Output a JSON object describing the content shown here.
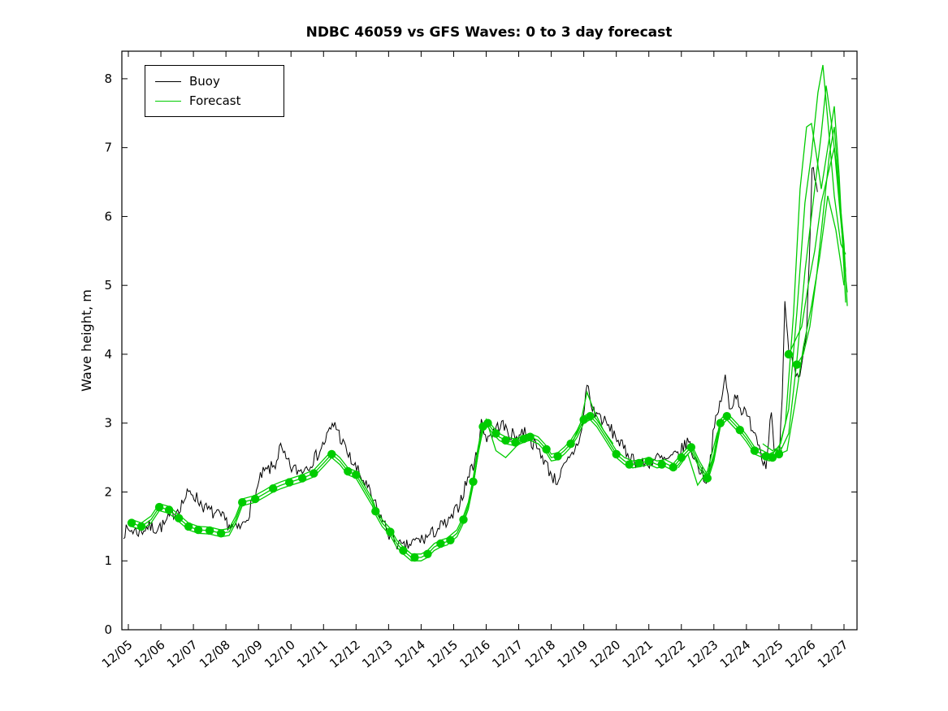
{
  "chart_data": {
    "type": "line",
    "title": "NDBC 46059 vs GFS Waves: 0 to 3 day forecast",
    "xlabel": "",
    "ylabel": "Wave height, m",
    "xlim": [
      -0.2,
      22.4
    ],
    "ylim": [
      0,
      8.4
    ],
    "grid": false,
    "legend_position": "top-left",
    "y_ticks": [
      0,
      1,
      2,
      3,
      4,
      5,
      6,
      7,
      8
    ],
    "x_ticks": [
      0,
      1,
      2,
      3,
      4,
      5,
      6,
      7,
      8,
      9,
      10,
      11,
      12,
      13,
      14,
      15,
      16,
      17,
      18,
      19,
      20,
      21,
      22
    ],
    "x_ticklabels": [
      "12/05",
      "12/06",
      "12/07",
      "12/08",
      "12/09",
      "12/10",
      "12/11",
      "12/12",
      "12/13",
      "12/14",
      "12/15",
      "12/16",
      "12/17",
      "12/18",
      "12/19",
      "12/20",
      "12/21",
      "12/22",
      "12/23",
      "12/24",
      "12/25",
      "12/26",
      "12/27"
    ],
    "colors": {
      "buoy": "#000000",
      "forecast": "#00cc00"
    },
    "legend": [
      {
        "label": "Buoy",
        "color": "#000000"
      },
      {
        "label": "Forecast",
        "color": "#00cc00"
      }
    ],
    "buoy": {
      "units": "days since 12/05, wave height m",
      "noise_amplitude": 0.1,
      "sample_hours": 1,
      "anchors": [
        [
          -0.15,
          1.42
        ],
        [
          0.1,
          1.45
        ],
        [
          0.35,
          1.42
        ],
        [
          0.6,
          1.5
        ],
        [
          0.85,
          1.47
        ],
        [
          1.1,
          1.52
        ],
        [
          1.35,
          1.68
        ],
        [
          1.6,
          1.8
        ],
        [
          1.8,
          1.95
        ],
        [
          1.95,
          2.0
        ],
        [
          2.15,
          1.88
        ],
        [
          2.4,
          1.75
        ],
        [
          2.65,
          1.68
        ],
        [
          2.9,
          1.62
        ],
        [
          3.1,
          1.52
        ],
        [
          3.3,
          1.45
        ],
        [
          3.5,
          1.5
        ],
        [
          3.7,
          1.7
        ],
        [
          3.9,
          1.95
        ],
        [
          4.1,
          2.25
        ],
        [
          4.3,
          2.32
        ],
        [
          4.5,
          2.38
        ],
        [
          4.67,
          2.65
        ],
        [
          4.8,
          2.5
        ],
        [
          5.0,
          2.35
        ],
        [
          5.25,
          2.3
        ],
        [
          5.5,
          2.38
        ],
        [
          5.75,
          2.5
        ],
        [
          5.95,
          2.65
        ],
        [
          6.15,
          2.85
        ],
        [
          6.35,
          3.0
        ],
        [
          6.55,
          2.75
        ],
        [
          6.8,
          2.5
        ],
        [
          7.05,
          2.3
        ],
        [
          7.3,
          2.1
        ],
        [
          7.55,
          1.85
        ],
        [
          7.8,
          1.6
        ],
        [
          8.0,
          1.4
        ],
        [
          8.2,
          1.28
        ],
        [
          8.45,
          1.18
        ],
        [
          8.7,
          1.25
        ],
        [
          8.9,
          1.3
        ],
        [
          9.1,
          1.32
        ],
        [
          9.35,
          1.4
        ],
        [
          9.6,
          1.5
        ],
        [
          9.85,
          1.55
        ],
        [
          10.1,
          1.75
        ],
        [
          10.3,
          2.0
        ],
        [
          10.5,
          2.3
        ],
        [
          10.7,
          2.5
        ],
        [
          10.85,
          3.0
        ],
        [
          11.0,
          2.8
        ],
        [
          11.2,
          2.85
        ],
        [
          11.45,
          3.0
        ],
        [
          11.7,
          2.85
        ],
        [
          11.95,
          2.8
        ],
        [
          12.2,
          2.9
        ],
        [
          12.45,
          2.7
        ],
        [
          12.7,
          2.55
        ],
        [
          12.95,
          2.3
        ],
        [
          13.15,
          2.15
        ],
        [
          13.4,
          2.35
        ],
        [
          13.6,
          2.5
        ],
        [
          13.8,
          2.7
        ],
        [
          13.95,
          2.9
        ],
        [
          14.1,
          3.6
        ],
        [
          14.25,
          3.2
        ],
        [
          14.5,
          3.1
        ],
        [
          14.75,
          2.95
        ],
        [
          15.0,
          2.8
        ],
        [
          15.25,
          2.6
        ],
        [
          15.5,
          2.5
        ],
        [
          15.75,
          2.4
        ],
        [
          16.0,
          2.42
        ],
        [
          16.25,
          2.5
        ],
        [
          16.5,
          2.45
        ],
        [
          16.75,
          2.5
        ],
        [
          17.0,
          2.6
        ],
        [
          17.2,
          2.75
        ],
        [
          17.4,
          2.5
        ],
        [
          17.6,
          2.3
        ],
        [
          17.8,
          2.15
        ],
        [
          18.0,
          2.9
        ],
        [
          18.2,
          3.3
        ],
        [
          18.35,
          3.65
        ],
        [
          18.5,
          3.15
        ],
        [
          18.65,
          3.45
        ],
        [
          18.85,
          3.2
        ],
        [
          19.0,
          3.1
        ],
        [
          19.25,
          2.9
        ],
        [
          19.45,
          2.6
        ],
        [
          19.6,
          2.35
        ],
        [
          19.75,
          3.2
        ],
        [
          19.85,
          2.6
        ],
        [
          20.0,
          2.45
        ],
        [
          20.1,
          3.3
        ],
        [
          20.18,
          4.7
        ],
        [
          20.3,
          4.05
        ],
        [
          20.45,
          3.85
        ],
        [
          20.6,
          3.65
        ],
        [
          20.75,
          3.95
        ],
        [
          20.85,
          4.4
        ],
        [
          20.95,
          5.6
        ],
        [
          21.02,
          6.85
        ],
        [
          21.1,
          6.6
        ],
        [
          21.2,
          6.25
        ]
      ]
    },
    "forecast": {
      "offsets": [
        0,
        0.05,
        -0.05
      ],
      "master": [
        [
          0.1,
          1.55
        ],
        [
          0.4,
          1.5
        ],
        [
          0.7,
          1.6
        ],
        [
          0.95,
          1.78
        ],
        [
          1.25,
          1.74
        ],
        [
          1.55,
          1.62
        ],
        [
          1.85,
          1.5
        ],
        [
          2.15,
          1.45
        ],
        [
          2.5,
          1.44
        ],
        [
          2.85,
          1.4
        ],
        [
          3.1,
          1.42
        ],
        [
          3.3,
          1.6
        ],
        [
          3.5,
          1.85
        ],
        [
          3.9,
          1.9
        ],
        [
          4.2,
          1.98
        ],
        [
          4.45,
          2.05
        ],
        [
          4.7,
          2.1
        ],
        [
          4.95,
          2.14
        ],
        [
          5.35,
          2.2
        ],
        [
          5.7,
          2.27
        ],
        [
          6.0,
          2.42
        ],
        [
          6.25,
          2.55
        ],
        [
          6.5,
          2.45
        ],
        [
          6.75,
          2.3
        ],
        [
          7.0,
          2.25
        ],
        [
          7.25,
          2.05
        ],
        [
          7.5,
          1.85
        ],
        [
          7.6,
          1.72
        ],
        [
          7.8,
          1.55
        ],
        [
          8.05,
          1.42
        ],
        [
          8.25,
          1.25
        ],
        [
          8.45,
          1.15
        ],
        [
          8.7,
          1.05
        ],
        [
          9.0,
          1.05
        ],
        [
          9.2,
          1.1
        ],
        [
          9.4,
          1.2
        ],
        [
          9.6,
          1.25
        ],
        [
          9.8,
          1.28
        ],
        [
          10.1,
          1.4
        ],
        [
          10.3,
          1.6
        ],
        [
          10.45,
          1.8
        ],
        [
          10.6,
          2.15
        ],
        [
          10.75,
          2.6
        ],
        [
          10.9,
          2.95
        ],
        [
          11.05,
          3.0
        ],
        [
          11.2,
          2.9
        ],
        [
          11.4,
          2.8
        ],
        [
          11.6,
          2.75
        ],
        [
          11.9,
          2.72
        ],
        [
          12.15,
          2.77
        ],
        [
          12.35,
          2.8
        ],
        [
          12.6,
          2.75
        ],
        [
          12.85,
          2.62
        ],
        [
          13.0,
          2.5
        ],
        [
          13.2,
          2.52
        ],
        [
          13.4,
          2.6
        ],
        [
          13.6,
          2.7
        ],
        [
          13.8,
          2.85
        ],
        [
          14.0,
          3.05
        ],
        [
          14.2,
          3.1
        ],
        [
          14.4,
          3.0
        ],
        [
          14.6,
          2.85
        ],
        [
          14.8,
          2.7
        ],
        [
          15.0,
          2.55
        ],
        [
          15.25,
          2.45
        ],
        [
          15.5,
          2.4
        ],
        [
          15.75,
          2.42
        ],
        [
          16.0,
          2.45
        ],
        [
          16.25,
          2.4
        ],
        [
          16.5,
          2.42
        ],
        [
          16.75,
          2.36
        ],
        [
          17.0,
          2.5
        ],
        [
          17.3,
          2.65
        ],
        [
          17.55,
          2.4
        ],
        [
          17.8,
          2.2
        ],
        [
          18.0,
          2.5
        ],
        [
          18.2,
          3.0
        ],
        [
          18.4,
          3.1
        ],
        [
          18.6,
          3.0
        ],
        [
          18.8,
          2.9
        ],
        [
          19.0,
          2.78
        ],
        [
          19.25,
          2.6
        ],
        [
          19.5,
          2.55
        ],
        [
          19.7,
          2.5
        ],
        [
          19.9,
          2.55
        ],
        [
          20.1,
          2.6
        ]
      ],
      "extra_members": [
        [
          [
            10.6,
            2.1
          ],
          [
            10.8,
            2.7
          ],
          [
            11.0,
            3.05
          ],
          [
            11.3,
            2.6
          ],
          [
            11.6,
            2.5
          ],
          [
            11.9,
            2.65
          ],
          [
            12.2,
            2.8
          ]
        ],
        [
          [
            13.6,
            2.65
          ],
          [
            13.9,
            3.0
          ],
          [
            14.1,
            3.45
          ],
          [
            14.3,
            3.2
          ],
          [
            14.6,
            2.9
          ],
          [
            14.9,
            2.7
          ]
        ],
        [
          [
            16.9,
            2.35
          ],
          [
            17.2,
            2.55
          ],
          [
            17.5,
            2.1
          ],
          [
            17.8,
            2.3
          ],
          [
            18.1,
            2.85
          ],
          [
            18.3,
            3.05
          ]
        ]
      ],
      "end_members": [
        [
          [
            19.5,
            2.7
          ],
          [
            19.8,
            2.6
          ],
          [
            20.0,
            2.65
          ],
          [
            20.2,
            3.0
          ],
          [
            20.45,
            4.6
          ],
          [
            20.65,
            6.4
          ],
          [
            20.85,
            7.3
          ],
          [
            21.0,
            7.35
          ],
          [
            21.15,
            6.9
          ],
          [
            21.3,
            6.4
          ],
          [
            21.5,
            7.0
          ],
          [
            21.7,
            7.6
          ],
          [
            21.85,
            6.6
          ],
          [
            22.05,
            4.75
          ]
        ],
        [
          [
            19.8,
            2.55
          ],
          [
            20.05,
            2.7
          ],
          [
            20.3,
            3.2
          ],
          [
            20.55,
            4.6
          ],
          [
            20.8,
            6.2
          ],
          [
            21.0,
            6.9
          ],
          [
            21.2,
            7.8
          ],
          [
            21.35,
            8.2
          ],
          [
            21.5,
            7.4
          ],
          [
            21.7,
            6.3
          ],
          [
            21.9,
            5.6
          ],
          [
            22.05,
            5.45
          ]
        ],
        [
          [
            20.05,
            2.6
          ],
          [
            20.3,
            2.85
          ],
          [
            20.55,
            3.9
          ],
          [
            20.8,
            5.2
          ],
          [
            21.05,
            6.2
          ],
          [
            21.3,
            7.2
          ],
          [
            21.45,
            7.9
          ],
          [
            21.6,
            7.4
          ],
          [
            21.8,
            6.6
          ],
          [
            22.0,
            5.6
          ],
          [
            22.1,
            4.7
          ]
        ],
        [
          [
            20.3,
            4.0
          ],
          [
            20.5,
            4.2
          ],
          [
            20.7,
            4.4
          ],
          [
            20.9,
            5.0
          ],
          [
            21.1,
            5.5
          ],
          [
            21.3,
            6.2
          ],
          [
            21.5,
            6.6
          ],
          [
            21.7,
            7.0
          ],
          [
            21.85,
            6.2
          ],
          [
            22.05,
            5.2
          ]
        ],
        [
          [
            20.55,
            3.85
          ],
          [
            20.75,
            4.0
          ],
          [
            20.95,
            4.4
          ],
          [
            21.15,
            5.1
          ],
          [
            21.35,
            6.0
          ],
          [
            21.55,
            6.9
          ],
          [
            21.7,
            7.3
          ],
          [
            21.85,
            6.4
          ],
          [
            22.0,
            5.3
          ],
          [
            22.1,
            4.9
          ]
        ],
        [
          [
            20.0,
            2.55
          ],
          [
            20.25,
            2.6
          ],
          [
            20.5,
            3.3
          ],
          [
            20.75,
            4.1
          ],
          [
            21.0,
            4.7
          ],
          [
            21.25,
            5.4
          ],
          [
            21.5,
            6.3
          ],
          [
            21.75,
            5.8
          ],
          [
            22.0,
            5.0
          ]
        ]
      ],
      "markers": [
        [
          0.1,
          1.55
        ],
        [
          0.4,
          1.5
        ],
        [
          0.95,
          1.78
        ],
        [
          1.25,
          1.74
        ],
        [
          1.55,
          1.62
        ],
        [
          1.85,
          1.5
        ],
        [
          2.15,
          1.45
        ],
        [
          2.5,
          1.44
        ],
        [
          2.85,
          1.4
        ],
        [
          3.5,
          1.85
        ],
        [
          3.9,
          1.9
        ],
        [
          4.45,
          2.05
        ],
        [
          4.95,
          2.14
        ],
        [
          5.35,
          2.2
        ],
        [
          5.7,
          2.27
        ],
        [
          6.25,
          2.55
        ],
        [
          6.75,
          2.3
        ],
        [
          7.0,
          2.25
        ],
        [
          7.6,
          1.72
        ],
        [
          8.05,
          1.42
        ],
        [
          8.45,
          1.15
        ],
        [
          8.8,
          1.05
        ],
        [
          9.2,
          1.1
        ],
        [
          9.6,
          1.25
        ],
        [
          9.9,
          1.3
        ],
        [
          10.3,
          1.6
        ],
        [
          10.6,
          2.15
        ],
        [
          10.9,
          2.95
        ],
        [
          11.05,
          3.0
        ],
        [
          11.3,
          2.85
        ],
        [
          11.6,
          2.75
        ],
        [
          11.9,
          2.72
        ],
        [
          12.15,
          2.77
        ],
        [
          12.35,
          2.8
        ],
        [
          12.85,
          2.62
        ],
        [
          13.2,
          2.52
        ],
        [
          13.6,
          2.7
        ],
        [
          14.0,
          3.05
        ],
        [
          14.2,
          3.1
        ],
        [
          15.0,
          2.55
        ],
        [
          15.4,
          2.4
        ],
        [
          15.7,
          2.42
        ],
        [
          16.0,
          2.45
        ],
        [
          16.4,
          2.4
        ],
        [
          16.75,
          2.36
        ],
        [
          17.0,
          2.5
        ],
        [
          17.3,
          2.65
        ],
        [
          17.8,
          2.2
        ],
        [
          18.2,
          3.0
        ],
        [
          18.4,
          3.1
        ],
        [
          18.8,
          2.9
        ],
        [
          19.25,
          2.6
        ],
        [
          19.6,
          2.52
        ],
        [
          19.8,
          2.5
        ],
        [
          20.0,
          2.55
        ],
        [
          20.3,
          4.0
        ],
        [
          20.55,
          3.85
        ]
      ]
    }
  }
}
